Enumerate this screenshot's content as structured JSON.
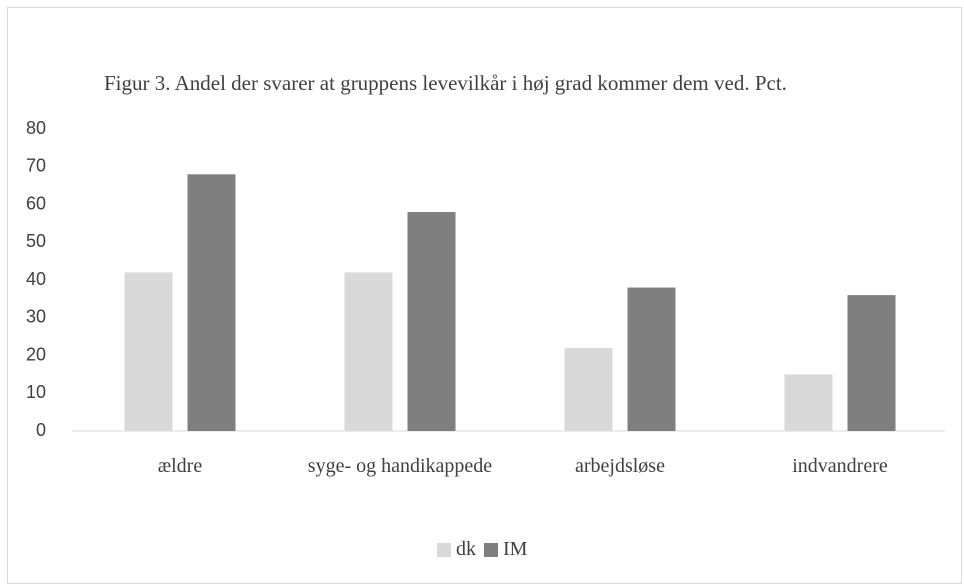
{
  "chart_data": {
    "type": "bar",
    "title": "Figur 3. Andel der svarer at gruppens levevilkår i høj grad kommer dem ved. Pct.",
    "categories": [
      "ældre",
      "syge- og handikappede",
      "arbejdsløse",
      "indvandrere"
    ],
    "series": [
      {
        "name": "dk",
        "color": "#d9d9d9",
        "values": [
          42,
          42,
          22,
          15
        ]
      },
      {
        "name": "IM",
        "color": "#7f7f7f",
        "values": [
          68,
          58,
          38,
          36
        ]
      }
    ],
    "ylim": [
      0,
      80
    ],
    "yticks": [
      0,
      10,
      20,
      30,
      40,
      50,
      60,
      70,
      80
    ],
    "grid": false,
    "legend": "bottom"
  }
}
